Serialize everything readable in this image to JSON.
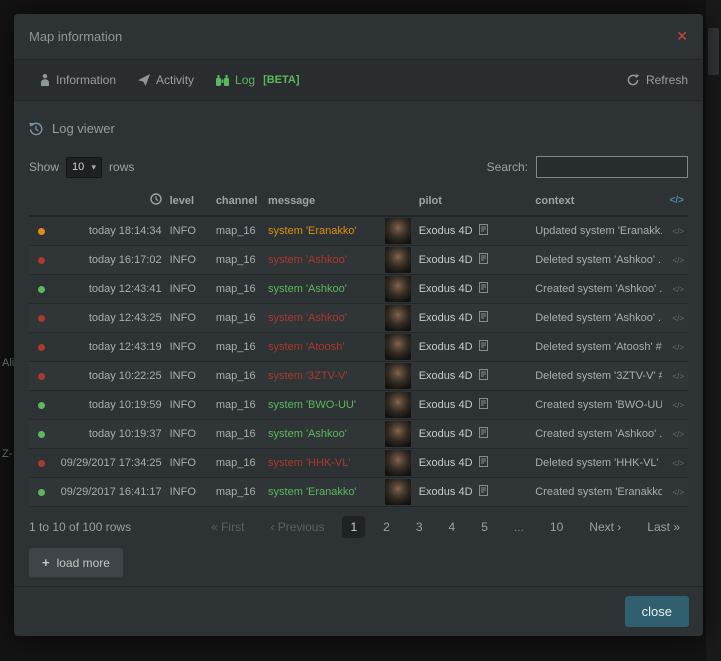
{
  "background": {
    "map_labels": [
      "Ali",
      "Z-"
    ]
  },
  "modal": {
    "title": "Map information",
    "close_icon": "✕",
    "footer": {
      "close_label": "close"
    }
  },
  "tabs": {
    "items": [
      {
        "label": "Information",
        "icon": "information-icon",
        "active": false
      },
      {
        "label": "Activity",
        "icon": "paper-plane-icon",
        "active": false
      },
      {
        "label": "Log",
        "badge": "[BETA]",
        "icon": "binoculars-icon",
        "active": true
      }
    ],
    "refresh_label": "Refresh"
  },
  "log_viewer": {
    "title": "Log viewer",
    "show_label": "Show",
    "page_size": "10",
    "rows_label": "rows",
    "search_label": "Search:",
    "search_value": "",
    "load_more_label": "load more"
  },
  "log_table": {
    "headers": {
      "level": "level",
      "channel": "channel",
      "message": "message",
      "pilot": "pilot",
      "context": "context",
      "code": "</>"
    },
    "rows": [
      {
        "status": "updated",
        "time": "today 18:14:34",
        "level": "INFO",
        "channel": "map_16",
        "message": "system 'Eranakko'",
        "pilot": "Exodus 4D",
        "context": "Updated system 'Eranakk..."
      },
      {
        "status": "deleted",
        "time": "today 16:17:02",
        "level": "INFO",
        "channel": "map_16",
        "message": "system 'Ashkoo'",
        "pilot": "Exodus 4D",
        "context": "Deleted system 'Ashkoo' ..."
      },
      {
        "status": "created",
        "time": "today 12:43:41",
        "level": "INFO",
        "channel": "map_16",
        "message": "system 'Ashkoo'",
        "pilot": "Exodus 4D",
        "context": "Created system 'Ashkoo' ..."
      },
      {
        "status": "deleted",
        "time": "today 12:43:25",
        "level": "INFO",
        "channel": "map_16",
        "message": "system 'Ashkoo'",
        "pilot": "Exodus 4D",
        "context": "Deleted system 'Ashkoo' ..."
      },
      {
        "status": "deleted",
        "time": "today 12:43:19",
        "level": "INFO",
        "channel": "map_16",
        "message": "system 'Atoosh'",
        "pilot": "Exodus 4D",
        "context": "Deleted system 'Atoosh' #..."
      },
      {
        "status": "deleted",
        "time": "today 10:22:25",
        "level": "INFO",
        "channel": "map_16",
        "message": "system '3ZTV-V'",
        "pilot": "Exodus 4D",
        "context": "Deleted system '3ZTV-V' #..."
      },
      {
        "status": "created",
        "time": "today 10:19:59",
        "level": "INFO",
        "channel": "map_16",
        "message": "system 'BWO-UU'",
        "pilot": "Exodus 4D",
        "context": "Created system 'BWO-UU'..."
      },
      {
        "status": "created",
        "time": "today 10:19:37",
        "level": "INFO",
        "channel": "map_16",
        "message": "system 'Ashkoo'",
        "pilot": "Exodus 4D",
        "context": "Created system 'Ashkoo' ..."
      },
      {
        "status": "deleted",
        "time": "09/29/2017 17:34:25",
        "level": "INFO",
        "channel": "map_16",
        "message": "system 'HHK-VL'",
        "pilot": "Exodus 4D",
        "context": "Deleted system 'HHK-VL' ..."
      },
      {
        "status": "created",
        "time": "09/29/2017 16:41:17",
        "level": "INFO",
        "channel": "map_16",
        "message": "system 'Eranakko'",
        "pilot": "Exodus 4D",
        "context": "Created system 'Eranakko..."
      }
    ]
  },
  "pagination": {
    "summary": "1 to 10 of 100 rows",
    "first": "« First",
    "previous": "‹ Previous",
    "pages": [
      "1",
      "2",
      "3",
      "4",
      "5",
      "...",
      "10"
    ],
    "active_page": "1",
    "next": "Next ›",
    "last": "Last »"
  },
  "colors": {
    "accent_green": "#5cb85c",
    "status_updated": "#dc9013",
    "status_deleted": "#ab392f",
    "status_created": "#5cb85c",
    "close_red": "#cb463c",
    "button_blue": "#30606f",
    "modal_bg": "#2d3234"
  }
}
